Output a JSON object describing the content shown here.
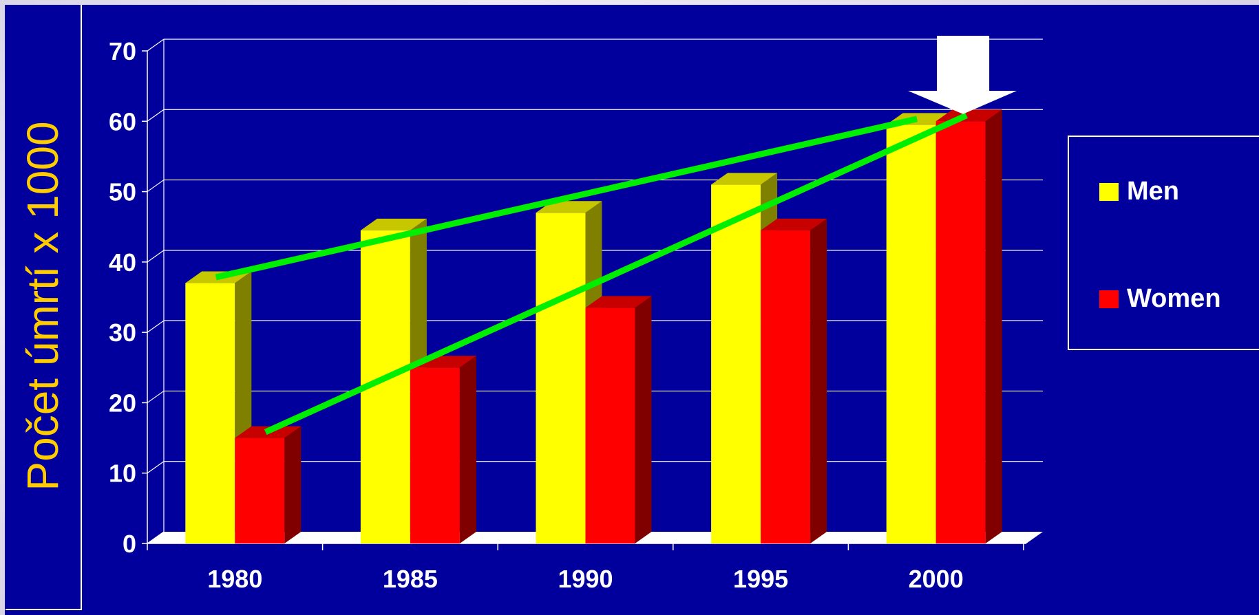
{
  "chart_data": {
    "type": "bar",
    "ylabel": "Počet úmrtí x 1000",
    "xlabel": "",
    "categories": [
      "1980",
      "1985",
      "1990",
      "1995",
      "2000"
    ],
    "ylim": [
      0,
      70
    ],
    "yticks": [
      "0",
      "10",
      "20",
      "30",
      "40",
      "50",
      "60",
      "70"
    ],
    "grid": true,
    "legend_position": "right",
    "series": [
      {
        "name": "Men",
        "values": [
          37,
          44.5,
          47,
          51,
          59.5
        ],
        "color": "#ffff00"
      },
      {
        "name": "Women",
        "values": [
          15,
          25,
          33.5,
          44.5,
          60
        ],
        "color": "#ff0000"
      }
    ],
    "trend_lines_color": "#00ee00",
    "highlight": "arrow pointing to 2000"
  }
}
